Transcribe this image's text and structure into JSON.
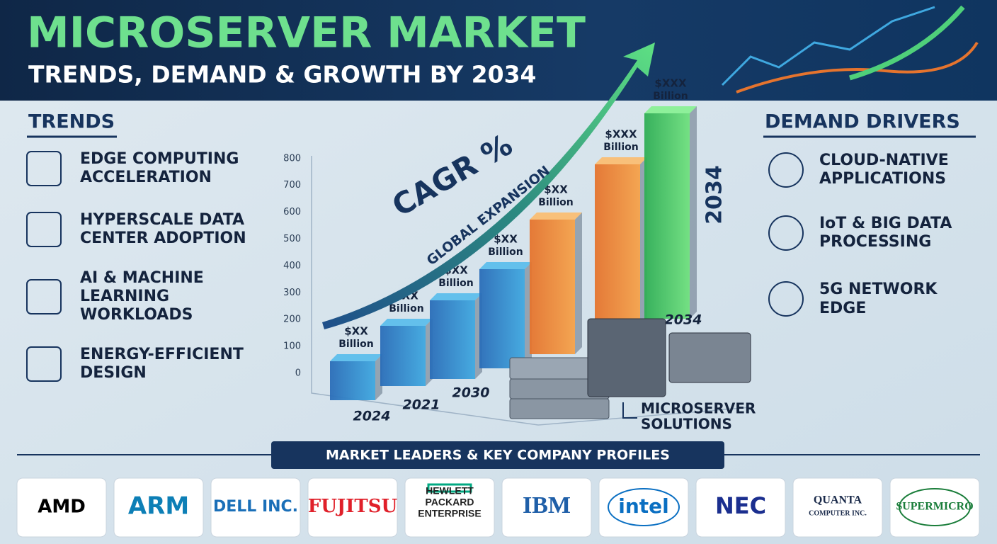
{
  "header": {
    "title": "MICROSERVER MARKET",
    "subtitle": "TRENDS, DEMAND & GROWTH BY 2034"
  },
  "trends": {
    "heading": "TRENDS",
    "items": [
      [
        "EDGE COMPUTING",
        "ACCELERATION"
      ],
      [
        "HYPERSCALE DATA",
        "CENTER ADOPTION"
      ],
      [
        "AI & MACHINE",
        "LEARNING",
        "WORKLOADS"
      ],
      [
        "ENERGY-EFFICIENT",
        "DESIGN"
      ]
    ]
  },
  "demand_drivers": {
    "heading": "DEMAND DRIVERS",
    "items": [
      [
        "CLOUD-NATIVE",
        "APPLICATIONS"
      ],
      [
        "IoT & BIG DATA",
        "PROCESSING"
      ],
      [
        "5G NETWORK",
        "EDGE"
      ]
    ]
  },
  "graphic": {
    "axis_ticks": [
      "0",
      "100",
      "200",
      "300",
      "400",
      "500",
      "600",
      "700",
      "800"
    ],
    "bars": [
      {
        "amount": "$XX",
        "unit": "Billion"
      },
      {
        "amount": "$XX",
        "unit": "Billion"
      },
      {
        "amount": "$XX",
        "unit": "Billion"
      },
      {
        "amount": "$XX",
        "unit": "Billion"
      },
      {
        "amount": "$XX",
        "unit": "Billion"
      },
      {
        "amount": "$XXX",
        "unit": "Billion"
      },
      {
        "amount": "$XXX",
        "unit": "Billion"
      }
    ],
    "year_labels": [
      "2024",
      "2021",
      "2030",
      "2034"
    ],
    "side_year": "2034",
    "cagr": "CAGR %",
    "arrow_label": "GLOBAL EXPANSION",
    "servers_label": [
      "MICROSERVER",
      "SOLUTIONS"
    ]
  },
  "leaders": {
    "heading": "MARKET LEADERS & KEY COMPANY PROFILES",
    "companies": [
      [
        "AMD"
      ],
      [
        "ARM"
      ],
      [
        "DELL INC."
      ],
      [
        "FUJITSU"
      ],
      [
        "HEWLETT",
        "PACKARD",
        "ENTERPRISE"
      ],
      [
        "IBM"
      ],
      [
        "intel"
      ],
      [
        "NEC"
      ],
      [
        "QUANTA",
        "COMPUTER INC."
      ],
      [
        "SUPERMICRO"
      ]
    ]
  }
}
